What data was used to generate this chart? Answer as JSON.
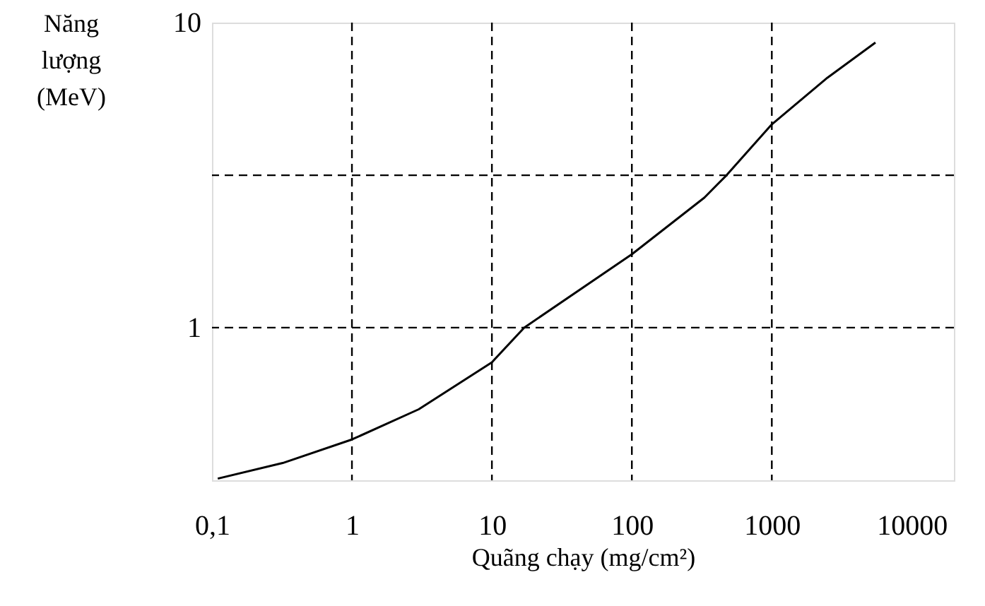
{
  "chart_data": {
    "type": "line",
    "xlabel": "Quãng chạy (mg/cm²)",
    "ylabel": "Năng\nlượng\n(MeV)",
    "x": [
      0.11,
      0.32,
      1,
      3,
      10,
      17,
      100,
      330,
      475,
      1000,
      2500,
      5500
    ],
    "series": [
      {
        "color": "#000000",
        "values": [
          0.32,
          0.36,
          0.43,
          0.54,
          0.77,
          1,
          1.74,
          2.67,
          3.16,
          4.64,
          6.6,
          8.6
        ]
      }
    ],
    "log": "xy",
    "xlim": [
      0.1,
      20000
    ],
    "ylim": [
      0.316,
      10
    ],
    "xticks": [
      {
        "value": 0.1,
        "label": "0,1"
      },
      1,
      10,
      100,
      1000,
      10000
    ],
    "yticks": [
      1,
      10
    ],
    "grid": false,
    "marker": "none",
    "line_style": "solid",
    "ref_lines": [
      {
        "axis": "x",
        "value": 1,
        "line_style": "dashed",
        "color": "#000000"
      },
      {
        "axis": "x",
        "value": 10,
        "line_style": "dashed",
        "color": "#000000"
      },
      {
        "axis": "x",
        "value": 100,
        "line_style": "dashed",
        "color": "#000000"
      },
      {
        "axis": "x",
        "value": 1000,
        "line_style": "dashed",
        "color": "#000000"
      },
      {
        "axis": "y",
        "value": 1,
        "line_style": "dashed",
        "color": "#000000"
      },
      {
        "axis": "y",
        "value": 3.16,
        "line_style": "dashed",
        "color": "#000000"
      }
    ]
  }
}
